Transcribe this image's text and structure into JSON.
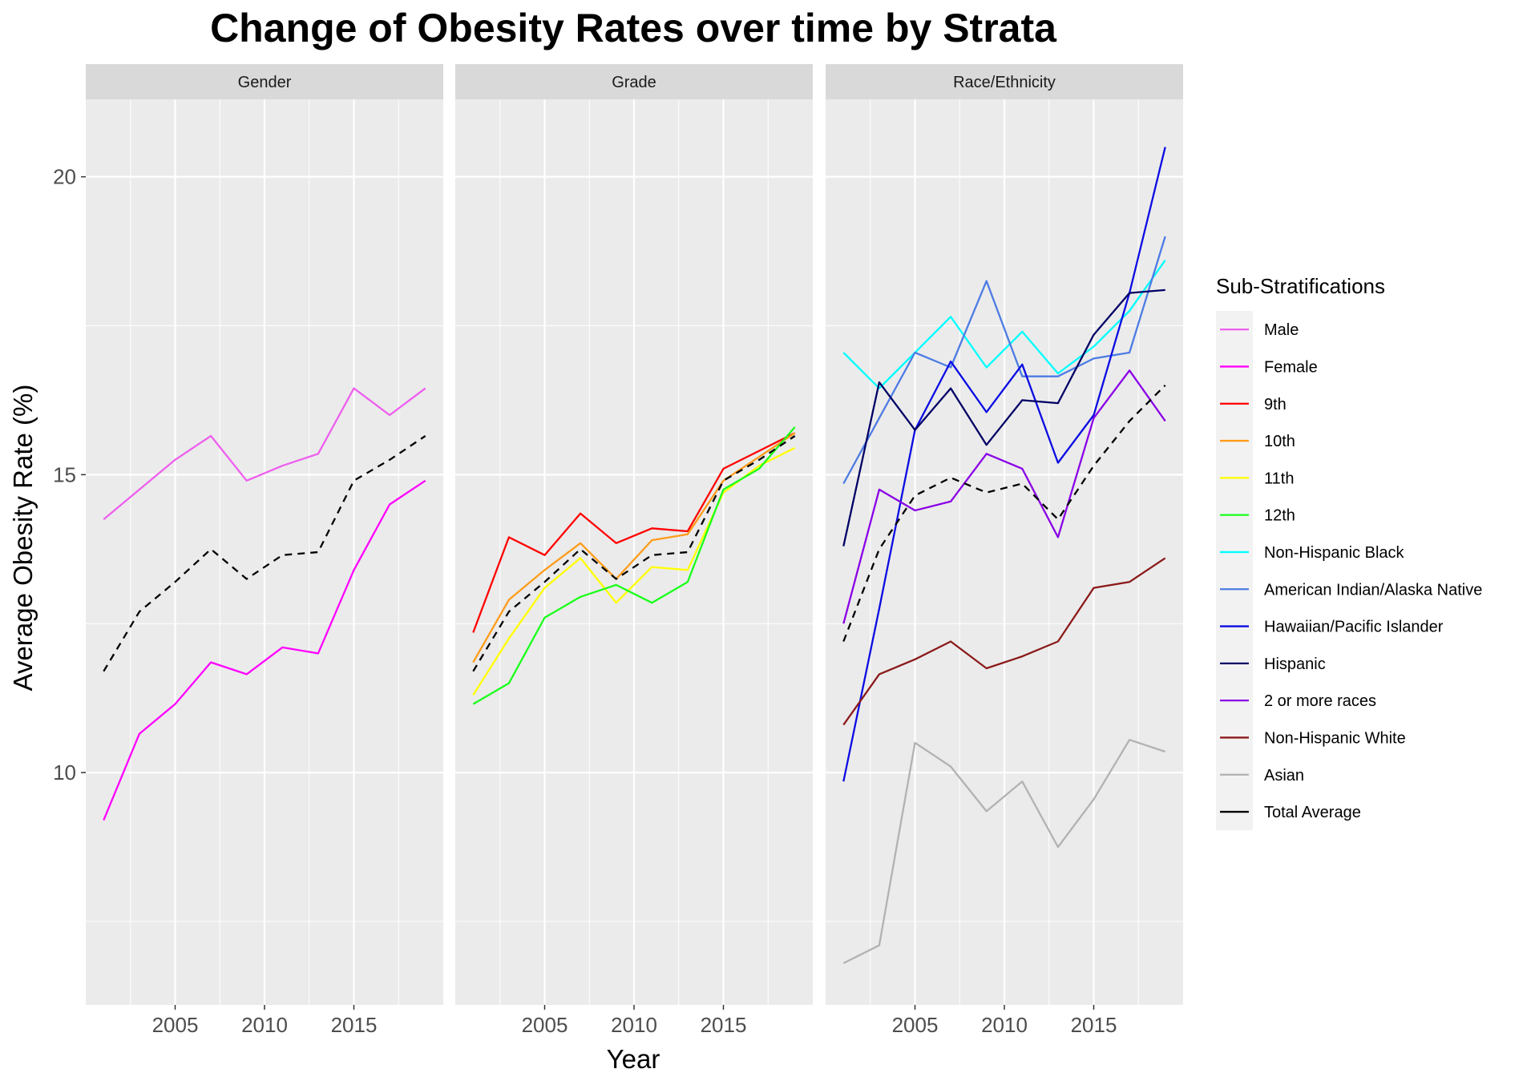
{
  "chart_data": {
    "type": "line",
    "title": "Change of Obesity Rates over time by Strata",
    "xlabel": "Year",
    "ylabel": "Average Obesity Rate (%)",
    "xlim": [
      2000,
      2020
    ],
    "ylim": [
      6.1,
      21.3
    ],
    "x_ticks": [
      2005,
      2010,
      2015
    ],
    "y_ticks": [
      10,
      15,
      20
    ],
    "grid": true,
    "legend": {
      "title": "Sub-Stratifications",
      "position": "right"
    },
    "facets": [
      {
        "label": "Gender",
        "series": [
          {
            "name": "Male",
            "color": "#EE5FEE",
            "x": [
              2001,
              2003,
              2005,
              2007,
              2009,
              2011,
              2013,
              2015,
              2017,
              2019
            ],
            "y": [
              14.25,
              14.75,
              15.25,
              15.65,
              14.9,
              15.15,
              15.35,
              16.45,
              16.0,
              16.45
            ]
          },
          {
            "name": "Female",
            "color": "#FF00FF",
            "x": [
              2001,
              2003,
              2005,
              2007,
              2009,
              2011,
              2013,
              2015,
              2017,
              2019
            ],
            "y": [
              9.2,
              10.65,
              11.15,
              11.85,
              11.65,
              12.1,
              12.0,
              13.4,
              14.5,
              14.9
            ]
          },
          {
            "name": "Total Average",
            "color": "#000000",
            "dashed": true,
            "x": [
              2001,
              2003,
              2005,
              2007,
              2009,
              2011,
              2013,
              2015,
              2017,
              2019
            ],
            "y": [
              11.7,
              12.7,
              13.2,
              13.75,
              13.25,
              13.65,
              13.7,
              14.9,
              15.25,
              15.65
            ]
          }
        ]
      },
      {
        "label": "Grade",
        "series": [
          {
            "name": "9th",
            "color": "#FF0000",
            "x": [
              2001,
              2003,
              2005,
              2007,
              2009,
              2011,
              2013,
              2015,
              2017,
              2019
            ],
            "y": [
              12.35,
              13.95,
              13.65,
              14.35,
              13.85,
              14.1,
              14.05,
              15.1,
              15.4,
              15.7
            ]
          },
          {
            "name": "10th",
            "color": "#FF9C1A",
            "x": [
              2001,
              2003,
              2005,
              2007,
              2009,
              2011,
              2013,
              2015,
              2017,
              2019
            ],
            "y": [
              11.85,
              12.9,
              13.4,
              13.85,
              13.25,
              13.9,
              14.0,
              14.9,
              15.3,
              15.7
            ]
          },
          {
            "name": "11th",
            "color": "#FFFF00",
            "x": [
              2001,
              2003,
              2005,
              2007,
              2009,
              2011,
              2013,
              2015,
              2017,
              2019
            ],
            "y": [
              11.3,
              12.25,
              13.1,
              13.6,
              12.85,
              13.45,
              13.4,
              14.7,
              15.15,
              15.45
            ]
          },
          {
            "name": "12th",
            "color": "#1AFF1A",
            "x": [
              2001,
              2003,
              2005,
              2007,
              2009,
              2011,
              2013,
              2015,
              2017,
              2019
            ],
            "y": [
              11.15,
              11.5,
              12.6,
              12.95,
              13.15,
              12.85,
              13.2,
              14.75,
              15.1,
              15.8
            ]
          },
          {
            "name": "Total Average",
            "color": "#000000",
            "dashed": true,
            "x": [
              2001,
              2003,
              2005,
              2007,
              2009,
              2011,
              2013,
              2015,
              2017,
              2019
            ],
            "y": [
              11.7,
              12.7,
              13.2,
              13.75,
              13.25,
              13.65,
              13.7,
              14.9,
              15.25,
              15.65
            ]
          }
        ]
      },
      {
        "label": "Race/Ethnicity",
        "series": [
          {
            "name": "Non-Hispanic Black",
            "color": "#00FFFF",
            "x": [
              2001,
              2003,
              2005,
              2007,
              2009,
              2011,
              2013,
              2015,
              2017,
              2019
            ],
            "y": [
              17.05,
              16.45,
              17.05,
              17.65,
              16.8,
              17.4,
              16.7,
              17.15,
              17.75,
              18.6
            ]
          },
          {
            "name": "American Indian/Alaska Native",
            "color": "#4C7BE3",
            "x": [
              2001,
              2003,
              2005,
              2007,
              2009,
              2011,
              2013,
              2015,
              2017,
              2019
            ],
            "y": [
              14.85,
              15.95,
              17.05,
              16.8,
              18.25,
              16.65,
              16.65,
              16.95,
              17.05,
              19.0
            ]
          },
          {
            "name": "Hawaiian/Pacific Islander",
            "color": "#0B0BE3",
            "x": [
              2001,
              2003,
              2005,
              2007,
              2009,
              2011,
              2013,
              2015,
              2017,
              2019
            ],
            "y": [
              9.85,
              12.75,
              15.75,
              16.9,
              16.05,
              16.85,
              15.2,
              16.0,
              18.05,
              20.5
            ]
          },
          {
            "name": "Hispanic",
            "color": "#000066",
            "x": [
              2001,
              2003,
              2005,
              2007,
              2009,
              2011,
              2013,
              2015,
              2017,
              2019
            ],
            "y": [
              13.8,
              16.55,
              15.75,
              16.45,
              15.5,
              16.25,
              16.2,
              17.35,
              18.05,
              18.1
            ]
          },
          {
            "name": "2 or more races",
            "color": "#8A00E6",
            "x": [
              2001,
              2003,
              2005,
              2007,
              2009,
              2011,
              2013,
              2015,
              2017,
              2019
            ],
            "y": [
              12.5,
              14.75,
              14.4,
              14.55,
              15.35,
              15.1,
              13.95,
              15.95,
              16.75,
              15.9
            ]
          },
          {
            "name": "Non-Hispanic White",
            "color": "#8B1A1A",
            "x": [
              2001,
              2003,
              2005,
              2007,
              2009,
              2011,
              2013,
              2015,
              2017,
              2019
            ],
            "y": [
              10.8,
              11.65,
              11.9,
              12.2,
              11.75,
              11.95,
              12.2,
              13.1,
              13.2,
              13.6
            ]
          },
          {
            "name": "Asian",
            "color": "#B2B2B2",
            "x": [
              2001,
              2003,
              2005,
              2007,
              2009,
              2011,
              2013,
              2015,
              2017,
              2019
            ],
            "y": [
              6.8,
              7.1,
              10.5,
              10.1,
              9.35,
              9.85,
              8.75,
              9.55,
              10.55,
              10.35
            ]
          },
          {
            "name": "Total Average",
            "color": "#000000",
            "dashed": true,
            "x": [
              2001,
              2003,
              2005,
              2007,
              2009,
              2011,
              2013,
              2015,
              2017,
              2019
            ],
            "y": [
              12.2,
              13.75,
              14.65,
              14.95,
              14.7,
              14.85,
              14.25,
              15.15,
              15.9,
              16.5
            ]
          }
        ]
      }
    ],
    "legend_entries": [
      {
        "name": "Male",
        "color": "#EE5FEE"
      },
      {
        "name": "Female",
        "color": "#FF00FF"
      },
      {
        "name": "9th",
        "color": "#FF0000"
      },
      {
        "name": "10th",
        "color": "#FF9C1A"
      },
      {
        "name": "11th",
        "color": "#FFFF00"
      },
      {
        "name": "12th",
        "color": "#1AFF1A"
      },
      {
        "name": "Non-Hispanic Black",
        "color": "#00FFFF"
      },
      {
        "name": "American Indian/Alaska Native",
        "color": "#4C7BE3"
      },
      {
        "name": "Hawaiian/Pacific Islander",
        "color": "#0B0BE3"
      },
      {
        "name": "Hispanic",
        "color": "#000066"
      },
      {
        "name": "2 or more races",
        "color": "#8A00E6"
      },
      {
        "name": "Non-Hispanic White",
        "color": "#8B1A1A"
      },
      {
        "name": "Asian",
        "color": "#B2B2B2"
      },
      {
        "name": "Total Average",
        "color": "#000000"
      }
    ]
  }
}
